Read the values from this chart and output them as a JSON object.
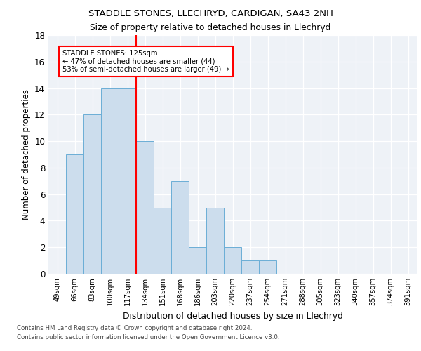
{
  "title1": "STADDLE STONES, LLECHRYD, CARDIGAN, SA43 2NH",
  "title2": "Size of property relative to detached houses in Llechryd",
  "xlabel": "Distribution of detached houses by size in Llechryd",
  "ylabel": "Number of detached properties",
  "categories": [
    "49sqm",
    "66sqm",
    "83sqm",
    "100sqm",
    "117sqm",
    "134sqm",
    "151sqm",
    "168sqm",
    "186sqm",
    "203sqm",
    "220sqm",
    "237sqm",
    "254sqm",
    "271sqm",
    "288sqm",
    "305sqm",
    "323sqm",
    "340sqm",
    "357sqm",
    "374sqm",
    "391sqm"
  ],
  "values": [
    0,
    9,
    12,
    14,
    14,
    10,
    5,
    7,
    2,
    5,
    2,
    1,
    1,
    0,
    0,
    0,
    0,
    0,
    0,
    0,
    0
  ],
  "bar_color": "#ccdded",
  "bar_edge_color": "#6baed6",
  "vline_color": "red",
  "annotation_title": "STADDLE STONES: 125sqm",
  "annotation_line1": "← 47% of detached houses are smaller (44)",
  "annotation_line2": "53% of semi-detached houses are larger (49) →",
  "ylim": [
    0,
    18
  ],
  "yticks": [
    0,
    2,
    4,
    6,
    8,
    10,
    12,
    14,
    16,
    18
  ],
  "footer1": "Contains HM Land Registry data © Crown copyright and database right 2024.",
  "footer2": "Contains public sector information licensed under the Open Government Licence v3.0.",
  "plot_bg_color": "#eef2f7"
}
